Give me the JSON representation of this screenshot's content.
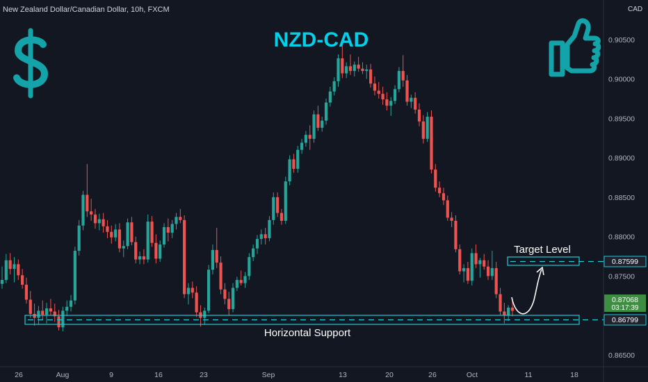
{
  "header": {
    "symbol_description": "New Zealand Dollar/Canadian Dollar, 10h, FXCM",
    "currency": "CAD"
  },
  "chart_data": {
    "type": "candlestick",
    "title": "NZD-CAD",
    "y_ticks": [
      "0.90500",
      "0.90000",
      "0.89500",
      "0.89000",
      "0.88500",
      "0.88000",
      "0.87500",
      "0.86500"
    ],
    "y_tick_values": [
      0.905,
      0.9,
      0.895,
      0.89,
      0.885,
      0.88,
      0.875,
      0.865
    ],
    "x_ticks": [
      "26",
      "Aug",
      "9",
      "16",
      "23",
      "Sep",
      "13",
      "20",
      "26",
      "Oct",
      "11",
      "18"
    ],
    "ylim": [
      0.8635,
      0.91
    ],
    "grid": false,
    "candles": [
      [
        0.874,
        0.8762,
        0.8734,
        0.8745
      ],
      [
        0.8745,
        0.8778,
        0.8741,
        0.877
      ],
      [
        0.877,
        0.8779,
        0.8752,
        0.8759
      ],
      [
        0.8759,
        0.8774,
        0.8742,
        0.8765
      ],
      [
        0.8765,
        0.8771,
        0.8745,
        0.8751
      ],
      [
        0.8751,
        0.8759,
        0.8734,
        0.8739
      ],
      [
        0.8739,
        0.8748,
        0.8715,
        0.872
      ],
      [
        0.872,
        0.8731,
        0.8697,
        0.8702
      ],
      [
        0.8702,
        0.8715,
        0.8687,
        0.8697
      ],
      [
        0.8697,
        0.8712,
        0.8688,
        0.8706
      ],
      [
        0.8706,
        0.8719,
        0.8694,
        0.8701
      ],
      [
        0.8701,
        0.8716,
        0.869,
        0.8709
      ],
      [
        0.8709,
        0.8721,
        0.87,
        0.8705
      ],
      [
        0.8705,
        0.8715,
        0.8692,
        0.8699
      ],
      [
        0.8699,
        0.8707,
        0.8681,
        0.8685
      ],
      [
        0.8685,
        0.8711,
        0.868,
        0.8706
      ],
      [
        0.8706,
        0.8719,
        0.8699,
        0.8711
      ],
      [
        0.8711,
        0.8726,
        0.8705,
        0.8719
      ],
      [
        0.8719,
        0.8787,
        0.8714,
        0.8782
      ],
      [
        0.8782,
        0.8821,
        0.8776,
        0.8814
      ],
      [
        0.8814,
        0.8858,
        0.8808,
        0.8853
      ],
      [
        0.8853,
        0.8892,
        0.8825,
        0.8832
      ],
      [
        0.8832,
        0.8848,
        0.882,
        0.8828
      ],
      [
        0.8828,
        0.8835,
        0.881,
        0.8817
      ],
      [
        0.8817,
        0.8829,
        0.8808,
        0.8822
      ],
      [
        0.8822,
        0.883,
        0.8805,
        0.8813
      ],
      [
        0.8813,
        0.8821,
        0.8798,
        0.8806
      ],
      [
        0.8806,
        0.8814,
        0.8791,
        0.8799
      ],
      [
        0.8799,
        0.8816,
        0.8794,
        0.8809
      ],
      [
        0.8809,
        0.8817,
        0.878,
        0.8785
      ],
      [
        0.8785,
        0.8795,
        0.8774,
        0.8788
      ],
      [
        0.8788,
        0.8823,
        0.8784,
        0.8818
      ],
      [
        0.8818,
        0.8825,
        0.8789,
        0.8793
      ],
      [
        0.8793,
        0.88,
        0.8766,
        0.8771
      ],
      [
        0.8771,
        0.8781,
        0.8765,
        0.8775
      ],
      [
        0.8775,
        0.8784,
        0.8765,
        0.8771
      ],
      [
        0.8771,
        0.8828,
        0.8767,
        0.8819
      ],
      [
        0.8819,
        0.8826,
        0.8787,
        0.8792
      ],
      [
        0.8792,
        0.8803,
        0.8766,
        0.8772
      ],
      [
        0.8772,
        0.8795,
        0.8768,
        0.879
      ],
      [
        0.879,
        0.8817,
        0.8786,
        0.8812
      ],
      [
        0.8812,
        0.8823,
        0.8794,
        0.8805
      ],
      [
        0.8805,
        0.8821,
        0.8798,
        0.8816
      ],
      [
        0.8816,
        0.883,
        0.8809,
        0.8825
      ],
      [
        0.8825,
        0.8835,
        0.8817,
        0.8821
      ],
      [
        0.8821,
        0.8827,
        0.8722,
        0.8727
      ],
      [
        0.8727,
        0.8741,
        0.8714,
        0.8735
      ],
      [
        0.8735,
        0.8743,
        0.8722,
        0.8729
      ],
      [
        0.8729,
        0.8737,
        0.8698,
        0.8704
      ],
      [
        0.8704,
        0.8713,
        0.8686,
        0.8697
      ],
      [
        0.8697,
        0.871,
        0.8688,
        0.8706
      ],
      [
        0.8706,
        0.8764,
        0.8703,
        0.8758
      ],
      [
        0.8758,
        0.879,
        0.8752,
        0.8783
      ],
      [
        0.8783,
        0.8811,
        0.876,
        0.8767
      ],
      [
        0.8767,
        0.8775,
        0.8727,
        0.8733
      ],
      [
        0.8733,
        0.8741,
        0.8714,
        0.8721
      ],
      [
        0.8721,
        0.873,
        0.87,
        0.8708
      ],
      [
        0.8708,
        0.8741,
        0.8704,
        0.8735
      ],
      [
        0.8735,
        0.8749,
        0.8731,
        0.8745
      ],
      [
        0.8745,
        0.8757,
        0.8738,
        0.8741
      ],
      [
        0.8741,
        0.8755,
        0.8735,
        0.875
      ],
      [
        0.875,
        0.8779,
        0.8745,
        0.8774
      ],
      [
        0.8774,
        0.879,
        0.8769,
        0.8785
      ],
      [
        0.8785,
        0.8802,
        0.8778,
        0.8797
      ],
      [
        0.8797,
        0.8809,
        0.879,
        0.8803
      ],
      [
        0.8803,
        0.8811,
        0.879,
        0.8798
      ],
      [
        0.8798,
        0.8826,
        0.8794,
        0.8821
      ],
      [
        0.8821,
        0.8856,
        0.8815,
        0.885
      ],
      [
        0.885,
        0.8856,
        0.8825,
        0.883
      ],
      [
        0.883,
        0.8835,
        0.8815,
        0.882
      ],
      [
        0.882,
        0.8876,
        0.8816,
        0.887
      ],
      [
        0.887,
        0.8903,
        0.8865,
        0.8898
      ],
      [
        0.8898,
        0.8905,
        0.8881,
        0.8886
      ],
      [
        0.8886,
        0.8915,
        0.8881,
        0.891
      ],
      [
        0.891,
        0.8924,
        0.8905,
        0.8919
      ],
      [
        0.8919,
        0.8934,
        0.8914,
        0.8929
      ],
      [
        0.8929,
        0.8941,
        0.891,
        0.8924
      ],
      [
        0.8924,
        0.896,
        0.8919,
        0.8955
      ],
      [
        0.8955,
        0.8966,
        0.8934,
        0.8938
      ],
      [
        0.8938,
        0.8952,
        0.8933,
        0.8947
      ],
      [
        0.8947,
        0.8975,
        0.8942,
        0.897
      ],
      [
        0.897,
        0.899,
        0.8965,
        0.8984
      ],
      [
        0.8984,
        0.9002,
        0.8979,
        0.8997
      ],
      [
        0.8997,
        0.9031,
        0.899,
        0.9026
      ],
      [
        0.9026,
        0.9043,
        0.9001,
        0.9007
      ],
      [
        0.9007,
        0.9021,
        0.9001,
        0.9016
      ],
      [
        0.9016,
        0.9031,
        0.9005,
        0.901
      ],
      [
        0.901,
        0.9022,
        0.9003,
        0.9018
      ],
      [
        0.9018,
        0.9028,
        0.9009,
        0.9013
      ],
      [
        0.9013,
        0.9021,
        0.9006,
        0.901
      ],
      [
        0.901,
        0.9018,
        0.9,
        0.9012
      ],
      [
        0.9012,
        0.9019,
        0.8989,
        0.8994
      ],
      [
        0.8994,
        0.9003,
        0.8979,
        0.8985
      ],
      [
        0.8985,
        0.8996,
        0.8975,
        0.8981
      ],
      [
        0.8981,
        0.899,
        0.8967,
        0.8974
      ],
      [
        0.8974,
        0.8983,
        0.896,
        0.8966
      ],
      [
        0.8966,
        0.8977,
        0.8953,
        0.8972
      ],
      [
        0.8972,
        0.8992,
        0.8968,
        0.8987
      ],
      [
        0.8987,
        0.9015,
        0.8983,
        0.901
      ],
      [
        0.901,
        0.903,
        0.899,
        0.8998
      ],
      [
        0.8998,
        0.9005,
        0.8966,
        0.8971
      ],
      [
        0.8971,
        0.898,
        0.8963,
        0.8976
      ],
      [
        0.8976,
        0.8983,
        0.8956,
        0.8961
      ],
      [
        0.8961,
        0.8969,
        0.894,
        0.8946
      ],
      [
        0.8946,
        0.8954,
        0.8918,
        0.8924
      ],
      [
        0.8924,
        0.8958,
        0.892,
        0.8952
      ],
      [
        0.8952,
        0.896,
        0.888,
        0.8885
      ],
      [
        0.8885,
        0.8892,
        0.8857,
        0.8862
      ],
      [
        0.8862,
        0.887,
        0.885,
        0.8855
      ],
      [
        0.8855,
        0.8862,
        0.884,
        0.8846
      ],
      [
        0.8846,
        0.8852,
        0.882,
        0.8824
      ],
      [
        0.8824,
        0.8831,
        0.8812,
        0.882
      ],
      [
        0.882,
        0.8827,
        0.878,
        0.8784
      ],
      [
        0.8784,
        0.879,
        0.8752,
        0.8756
      ],
      [
        0.8756,
        0.8765,
        0.8742,
        0.876
      ],
      [
        0.876,
        0.8768,
        0.874,
        0.8744
      ],
      [
        0.8744,
        0.8785,
        0.8738,
        0.8779
      ],
      [
        0.8779,
        0.879,
        0.876,
        0.8765
      ],
      [
        0.8765,
        0.8773,
        0.8748,
        0.877
      ],
      [
        0.877,
        0.8778,
        0.8758,
        0.8762
      ],
      [
        0.8762,
        0.877,
        0.8745,
        0.875
      ],
      [
        0.875,
        0.8782,
        0.8745,
        0.876
      ],
      [
        0.876,
        0.8768,
        0.8722,
        0.8727
      ],
      [
        0.8727,
        0.8735,
        0.87,
        0.8705
      ],
      [
        0.8705,
        0.8716,
        0.869,
        0.87
      ],
      [
        0.87,
        0.8713,
        0.8693,
        0.871
      ],
      [
        0.871,
        0.8721,
        0.8699,
        0.8706
      ]
    ]
  },
  "annotations": {
    "support_label": "Horizontal Support",
    "target_label": "Target Level",
    "support_price": "0.86799",
    "target_price": "0.87599",
    "current_price": "0.87068",
    "countdown": "03:17:39"
  },
  "colors": {
    "background": "#131722",
    "bull": "#26a69a",
    "bear": "#ef5350",
    "accent": "#22c9d6",
    "title": "#00d0e8",
    "axis_text": "#b2b5be",
    "current_price_bg": "#3e8e41"
  },
  "icons": [
    "dollar-icon",
    "thumbs-up-icon"
  ]
}
